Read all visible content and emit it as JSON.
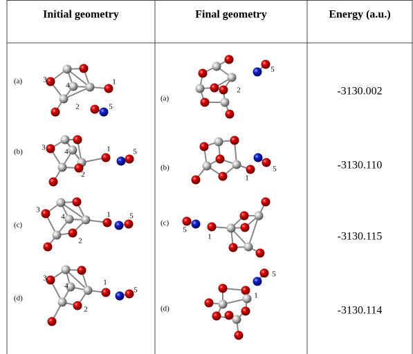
{
  "header": {
    "initial": "Initial geometry",
    "final": "Final geometry",
    "energy": "Energy (a.u.)"
  },
  "rows": [
    {
      "initial": {
        "label": "(a)",
        "atoms": [
          "3",
          "4",
          "2",
          "1",
          "5"
        ]
      },
      "final": {
        "label": "(a)",
        "atoms": [
          "5",
          "2"
        ]
      },
      "energy": "-3130.002"
    },
    {
      "initial": {
        "label": "(b)",
        "atoms": [
          "3",
          "4",
          "2",
          "1",
          "5"
        ]
      },
      "final": {
        "label": "(b)",
        "atoms": [
          "5",
          "1"
        ]
      },
      "energy": "-3130.110"
    },
    {
      "initial": {
        "label": "(c)",
        "atoms": [
          "3",
          "4",
          "2",
          "1",
          "5"
        ]
      },
      "final": {
        "label": "(c)",
        "atoms": [
          "5",
          "1"
        ]
      },
      "energy": "-3130.115"
    },
    {
      "initial": {
        "label": "(d)",
        "atoms": [
          "3",
          "4",
          "2",
          "1",
          "5"
        ]
      },
      "final": {
        "label": "(d)",
        "atoms": [
          "5",
          "1"
        ]
      },
      "energy": "-3130.114"
    }
  ]
}
